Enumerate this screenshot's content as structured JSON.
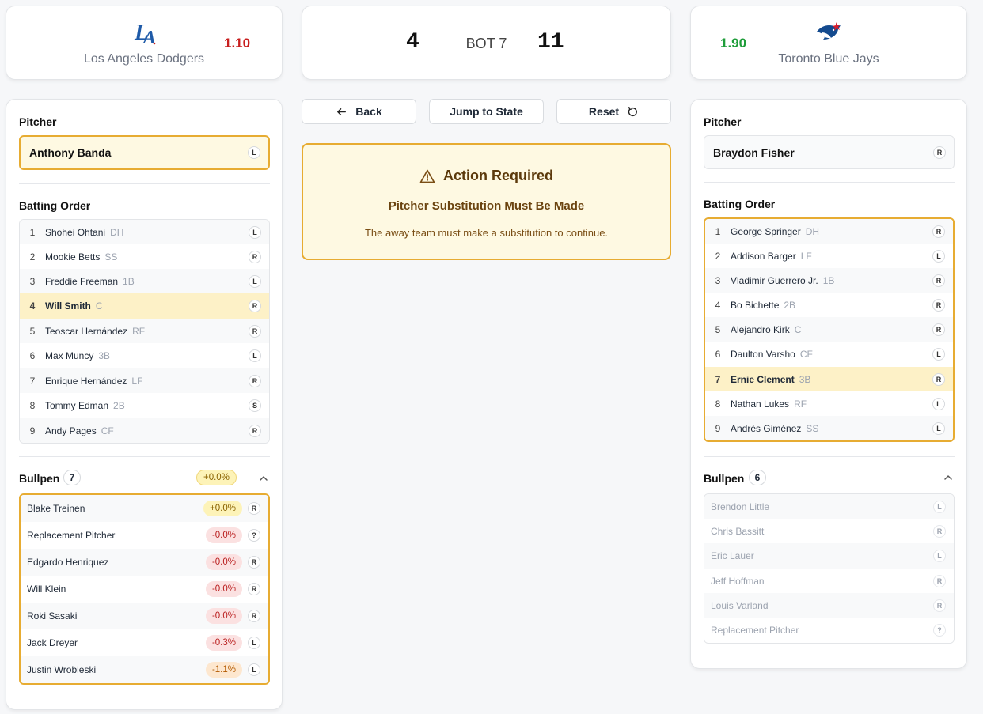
{
  "away": {
    "name": "Los Angeles Dodgers",
    "odds": "1.10",
    "logo": "LA",
    "score": "4",
    "pitcher": {
      "label": "Pitcher",
      "name": "Anthony Banda",
      "hand": "L"
    },
    "batting_label": "Batting Order",
    "lineup": [
      {
        "num": "1",
        "name": "Shohei Ohtani",
        "pos": "DH",
        "hand": "L"
      },
      {
        "num": "2",
        "name": "Mookie Betts",
        "pos": "SS",
        "hand": "R"
      },
      {
        "num": "3",
        "name": "Freddie Freeman",
        "pos": "1B",
        "hand": "L"
      },
      {
        "num": "4",
        "name": "Will Smith",
        "pos": "C",
        "hand": "R"
      },
      {
        "num": "5",
        "name": "Teoscar Hernández",
        "pos": "RF",
        "hand": "R"
      },
      {
        "num": "6",
        "name": "Max Muncy",
        "pos": "3B",
        "hand": "L"
      },
      {
        "num": "7",
        "name": "Enrique Hernández",
        "pos": "LF",
        "hand": "R"
      },
      {
        "num": "8",
        "name": "Tommy Edman",
        "pos": "2B",
        "hand": "S"
      },
      {
        "num": "9",
        "name": "Andy Pages",
        "pos": "CF",
        "hand": "R"
      }
    ],
    "bullpen": {
      "label": "Bullpen",
      "count": "7",
      "head_pct": "+0.0%",
      "pitchers": [
        {
          "name": "Blake Treinen",
          "pct": "+0.0%",
          "hand": "R"
        },
        {
          "name": "Replacement Pitcher",
          "pct": "-0.0%",
          "hand": "?"
        },
        {
          "name": "Edgardo Henriquez",
          "pct": "-0.0%",
          "hand": "R"
        },
        {
          "name": "Will Klein",
          "pct": "-0.0%",
          "hand": "R"
        },
        {
          "name": "Roki Sasaki",
          "pct": "-0.0%",
          "hand": "R"
        },
        {
          "name": "Jack Dreyer",
          "pct": "-0.3%",
          "hand": "L"
        },
        {
          "name": "Justin Wrobleski",
          "pct": "-1.1%",
          "hand": "L"
        }
      ]
    }
  },
  "home": {
    "name": "Toronto Blue Jays",
    "odds": "1.90",
    "score": "11",
    "pitcher": {
      "label": "Pitcher",
      "name": "Braydon Fisher",
      "hand": "R"
    },
    "batting_label": "Batting Order",
    "lineup": [
      {
        "num": "1",
        "name": "George Springer",
        "pos": "DH",
        "hand": "R"
      },
      {
        "num": "2",
        "name": "Addison Barger",
        "pos": "LF",
        "hand": "L"
      },
      {
        "num": "3",
        "name": "Vladimir Guerrero Jr.",
        "pos": "1B",
        "hand": "R"
      },
      {
        "num": "4",
        "name": "Bo Bichette",
        "pos": "2B",
        "hand": "R"
      },
      {
        "num": "5",
        "name": "Alejandro Kirk",
        "pos": "C",
        "hand": "R"
      },
      {
        "num": "6",
        "name": "Daulton Varsho",
        "pos": "CF",
        "hand": "L"
      },
      {
        "num": "7",
        "name": "Ernie Clement",
        "pos": "3B",
        "hand": "R"
      },
      {
        "num": "8",
        "name": "Nathan Lukes",
        "pos": "RF",
        "hand": "L"
      },
      {
        "num": "9",
        "name": "Andrés Giménez",
        "pos": "SS",
        "hand": "L"
      }
    ],
    "bullpen": {
      "label": "Bullpen",
      "count": "6",
      "pitchers": [
        {
          "name": "Brendon Little",
          "hand": "L"
        },
        {
          "name": "Chris Bassitt",
          "hand": "R"
        },
        {
          "name": "Eric Lauer",
          "hand": "L"
        },
        {
          "name": "Jeff Hoffman",
          "hand": "R"
        },
        {
          "name": "Louis Varland",
          "hand": "R"
        },
        {
          "name": "Replacement Pitcher",
          "hand": "?"
        }
      ]
    }
  },
  "inning": "BOT 7",
  "buttons": {
    "back": "Back",
    "jump": "Jump to State",
    "reset": "Reset"
  },
  "action": {
    "title": "Action Required",
    "subtitle": "Pitcher Substitution Must Be Made",
    "text": "The away team must make a substitution to continue."
  },
  "colors": {
    "accent": "#e7ac32",
    "odds_low": "#c81e1e",
    "odds_high": "#1f9d3a",
    "dodgers_blue": "#1e5aa8",
    "jays_blue": "#134a8e"
  }
}
